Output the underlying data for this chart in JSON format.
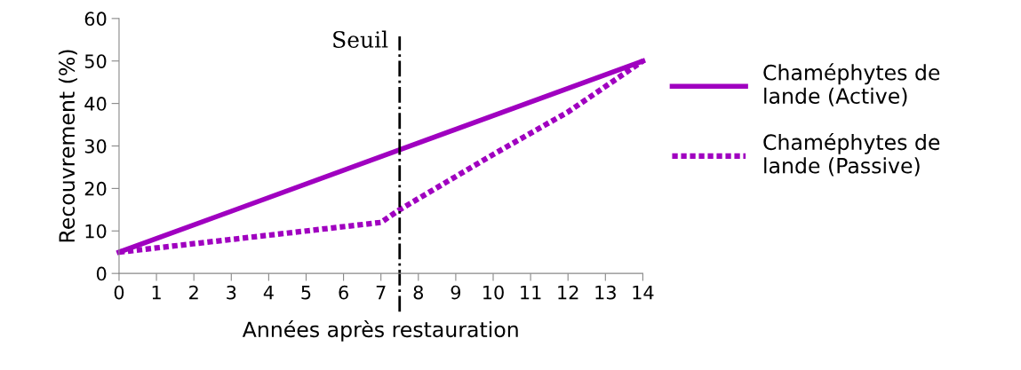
{
  "chart_data": {
    "type": "line",
    "xlabel": "Années après restauration",
    "ylabel": "Recouvrement (%)",
    "xlim": [
      0,
      14
    ],
    "xticks": [
      0,
      1,
      2,
      3,
      4,
      5,
      6,
      7,
      8,
      9,
      10,
      11,
      12,
      13,
      14
    ],
    "ylim": [
      0,
      60
    ],
    "yticks": [
      0,
      10,
      20,
      30,
      40,
      50,
      60
    ],
    "series": [
      {
        "name": "Chaméphytes de\nlande (Active)",
        "color": "#a000c0",
        "line_style": "solid",
        "x": [
          0,
          14
        ],
        "values": [
          5,
          50
        ]
      },
      {
        "name": "Chaméphytes de\nlande (Passive)",
        "color": "#a000c0",
        "line_style": "dotted",
        "x": [
          0,
          7,
          7.5,
          10,
          12,
          14
        ],
        "values": [
          5,
          12,
          15,
          28,
          38,
          50
        ]
      }
    ],
    "ref_lines": [
      {
        "axis": "x",
        "value": 7.5,
        "label": "Seuil",
        "color": "#000000",
        "line_style": "dashdot"
      }
    ],
    "legend": "right",
    "grid": false,
    "marker": "none"
  }
}
